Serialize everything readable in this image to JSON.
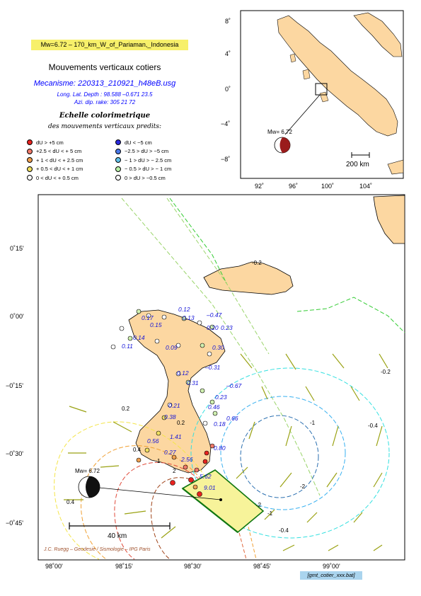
{
  "event": {
    "title": "Mw=6.72 – 170_km_W_of_Pariaman,_Indonesia",
    "heading": "Mouvements verticaux cotiers",
    "mechanism_name": "Mecanisme: 220313_210921_h48eB.usg",
    "params_line1": "Long. Lat. Depth : 98.588 –0.671 23.5",
    "params_line2": "Azi. dip. rake: 305 21 72",
    "magnitude_label": "Mw= 6.72"
  },
  "scale": {
    "title": "Echelle colorimetrique",
    "subtitle": "des mouvements verticaux predits:",
    "items_left": [
      {
        "label": "dU  > +5  cm",
        "color": "#e8231f"
      },
      {
        "label": "+2.5 < dU < + 5 cm",
        "color": "#f07a6a"
      },
      {
        "label": "+ 1  < dU < + 2.5 cm",
        "color": "#f0a050"
      },
      {
        "label": "+ 0.5 < dU < + 1  cm",
        "color": "#f0e060"
      },
      {
        "label": "0  < dU < + 0.5 cm",
        "color": "#ffffff"
      }
    ],
    "items_right": [
      {
        "label": "dU  < −5  cm",
        "color": "#2a2ae0"
      },
      {
        "label": "−2.5 > dU > −5  cm",
        "color": "#4a78e8"
      },
      {
        "label": "− 1  > dU > − 2.5  cm",
        "color": "#60c0e8"
      },
      {
        "label": "− 0.5 > dU > − 1 cm",
        "color": "#b8f0a8"
      },
      {
        "label": "0 > dU > −0.5  cm",
        "color": "#ffffff"
      }
    ]
  },
  "inset": {
    "lat_ticks": [
      "8˚",
      "4˚",
      "0˚",
      "−4˚",
      "−8˚"
    ],
    "lon_ticks": [
      "92˚",
      "96˚",
      "100˚",
      "104˚"
    ],
    "scalebar_label": "200 km"
  },
  "main": {
    "lat_ticks": [
      "0˚15'",
      "0˚00'",
      "−0˚15'",
      "−0˚30'",
      "−0˚45'"
    ],
    "lon_ticks": [
      "98˚00'",
      "98˚15'",
      "98˚30'",
      "98˚45'",
      "99˚00'"
    ],
    "scalebar_label": "40 km",
    "contour_labels": [
      "-0.2",
      "-0.2",
      "-0.4",
      "-1",
      "-2",
      "0.2",
      "0.2",
      "0.4",
      "1",
      "2",
      "-0.4",
      "-1",
      "-2",
      "0.4"
    ],
    "blue_values": [
      "0.12",
      "0.13",
      "–0.47",
      "0.20",
      "0.23",
      "0.09",
      "0.30",
      "–0.31",
      "–0.67",
      "0.21",
      "0.38",
      "0.56",
      "1.41",
      "0.27",
      "2.56",
      "5.62",
      "9.01",
      "0.80",
      "0.66",
      "0.18",
      "0.46",
      "0.23",
      "0.17",
      "0.15",
      "0.14",
      "0.11",
      "0.12",
      "0.31"
    ]
  },
  "credit": "J.C. Ruegg – Geodesie / Sismologie – IPG Paris",
  "command": "[gmt_cotier_xxx.bat]"
}
